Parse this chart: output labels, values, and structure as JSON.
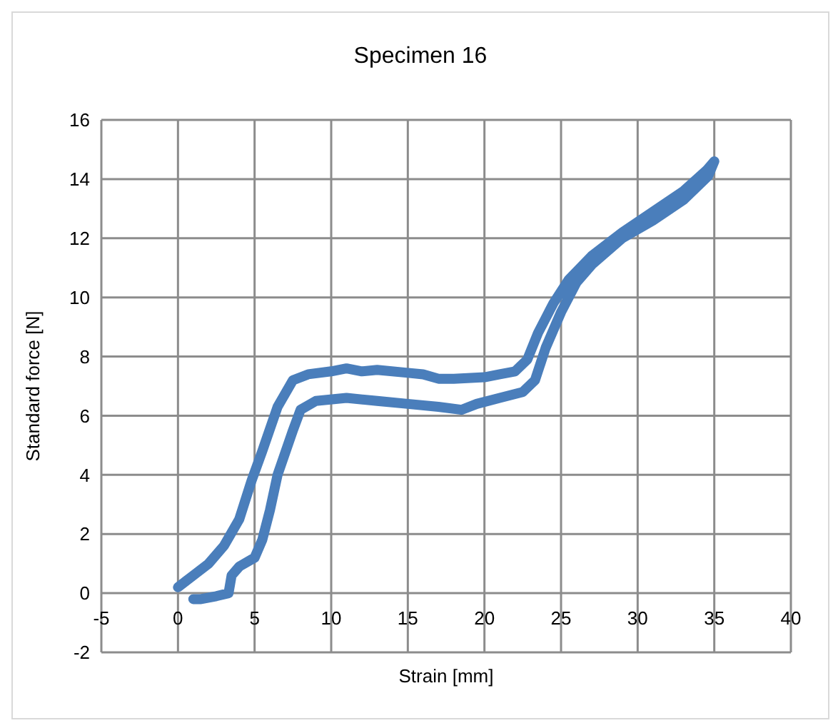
{
  "chart_data": {
    "type": "line",
    "title": "Specimen 16",
    "xlabel": "Strain [mm]",
    "ylabel": "Standard force [N]",
    "xlim": [
      -5,
      40
    ],
    "xticks": [
      -5,
      0,
      5,
      10,
      15,
      20,
      25,
      30,
      35,
      40
    ],
    "ylim": [
      -2,
      16
    ],
    "yticks": [
      -2,
      0,
      2,
      4,
      6,
      8,
      10,
      12,
      14,
      16
    ],
    "grid": true,
    "legend": false,
    "marker": "none",
    "line_style": "solid",
    "series": [
      {
        "color": "#4a7ebb",
        "x": [
          0,
          1,
          2,
          3,
          4,
          4.8,
          5.5,
          6.5,
          7.5,
          8.5,
          10,
          11,
          12,
          13,
          15,
          16,
          17,
          18,
          20,
          21,
          22,
          22.8,
          23.5,
          24.5,
          25.5,
          27,
          29,
          31,
          33,
          34.5,
          35,
          34.6,
          33,
          31,
          29,
          27,
          26,
          25,
          24,
          23.3,
          22.5,
          21,
          19.5,
          18.5,
          17,
          15,
          13,
          11,
          9,
          8,
          7.5,
          6.5,
          6,
          5.5,
          5,
          4,
          3.5,
          3.3,
          2.5,
          1.5,
          1
        ],
        "values": [
          0.2,
          0.6,
          1.0,
          1.6,
          2.5,
          3.8,
          4.8,
          6.3,
          7.2,
          7.4,
          7.5,
          7.6,
          7.5,
          7.55,
          7.45,
          7.4,
          7.25,
          7.25,
          7.3,
          7.4,
          7.5,
          7.9,
          8.8,
          9.8,
          10.6,
          11.4,
          12.2,
          12.9,
          13.6,
          14.3,
          14.6,
          14.1,
          13.3,
          12.6,
          12.0,
          11.1,
          10.5,
          9.5,
          8.3,
          7.2,
          6.8,
          6.6,
          6.4,
          6.2,
          6.3,
          6.4,
          6.5,
          6.6,
          6.5,
          6.2,
          5.5,
          4.0,
          2.8,
          1.8,
          1.2,
          0.9,
          0.6,
          0,
          -0.1,
          -0.2,
          -0.2
        ]
      }
    ]
  }
}
